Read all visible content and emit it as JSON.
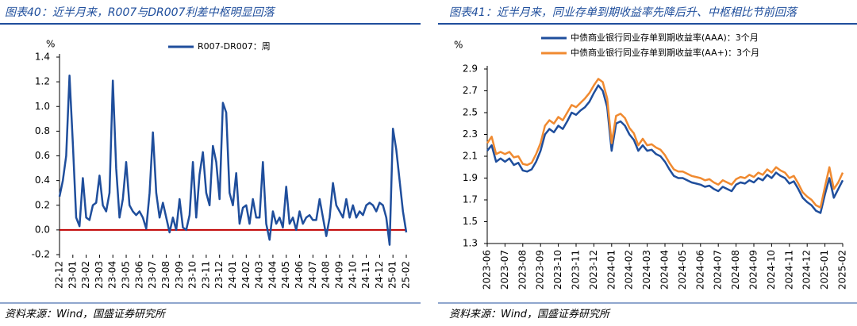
{
  "chart_data": [
    {
      "type": "line",
      "title": "图表40：近半月来，R007与DR007利差中枢明显回落",
      "y_label": "%",
      "source": "资料来源：Wind，国盛证券研究所",
      "categories": [
        "22-12",
        null,
        null,
        null,
        "23-01",
        null,
        null,
        null,
        "23-02",
        null,
        null,
        null,
        "23-03",
        null,
        null,
        null,
        "23-04",
        null,
        null,
        null,
        "23-05",
        null,
        null,
        null,
        "23-06",
        null,
        null,
        null,
        "23-07",
        null,
        null,
        null,
        "23-08",
        null,
        null,
        null,
        "23-09",
        null,
        null,
        null,
        "23-10",
        null,
        null,
        null,
        "23-11",
        null,
        null,
        null,
        "23-12",
        null,
        null,
        null,
        "24-01",
        null,
        null,
        null,
        "24-02",
        null,
        null,
        null,
        "24-03",
        null,
        null,
        null,
        "24-04",
        null,
        null,
        null,
        "24-05",
        null,
        null,
        null,
        "24-06",
        null,
        null,
        null,
        "24-07",
        null,
        null,
        null,
        "24-08",
        null,
        null,
        null,
        "24-09",
        null,
        null,
        null,
        "24-10",
        null,
        null,
        null,
        "24-11",
        null,
        null,
        null,
        "24-12",
        null,
        null,
        null,
        "25-01",
        null,
        null,
        null,
        "25-02"
      ],
      "series": [
        {
          "name": "R007-DR007：周",
          "color": "#1f4e9c",
          "values": [
            0.27,
            0.4,
            0.6,
            1.25,
            0.7,
            0.1,
            0.03,
            0.42,
            0.1,
            0.08,
            0.2,
            0.22,
            0.44,
            0.2,
            0.15,
            0.3,
            1.21,
            0.5,
            0.1,
            0.25,
            0.55,
            0.2,
            0.15,
            0.12,
            0.15,
            0.1,
            0.01,
            0.3,
            0.79,
            0.3,
            0.1,
            0.22,
            0.1,
            -0.02,
            0.1,
            0.0,
            0.25,
            0.02,
            0.0,
            0.12,
            0.55,
            0.1,
            0.45,
            0.63,
            0.3,
            0.2,
            0.68,
            0.55,
            0.25,
            1.03,
            0.95,
            0.3,
            0.2,
            0.46,
            0.05,
            0.18,
            0.2,
            0.05,
            0.25,
            0.1,
            0.1,
            0.55,
            0.05,
            -0.08,
            0.15,
            0.05,
            0.1,
            0.02,
            0.35,
            0.05,
            0.1,
            0.0,
            0.15,
            0.05,
            0.1,
            0.12,
            0.08,
            0.08,
            0.25,
            0.1,
            -0.05,
            0.1,
            0.38,
            0.2,
            0.15,
            0.1,
            0.25,
            0.1,
            0.2,
            0.1,
            0.15,
            0.12,
            0.2,
            0.22,
            0.2,
            0.15,
            0.22,
            0.2,
            0.1,
            -0.12,
            0.82,
            0.65,
            0.4,
            0.15,
            -0.02
          ]
        }
      ],
      "ylim": [
        -0.2,
        1.4
      ],
      "yticks": [
        -0.2,
        {
          "value": 0,
          "label": "0.0"
        },
        0.2,
        0.4,
        0.6,
        0.8,
        {
          "value": 1,
          "label": "1.0"
        },
        1.2,
        1.4
      ],
      "zero_line_color": "#c00000",
      "legend": "top-center",
      "x_axis_line": false
    },
    {
      "type": "line",
      "title": "图表41：近半月来，同业存单到期收益率先降后升、中枢相比节前回落",
      "y_label": "%",
      "source": "资料来源：Wind，国盛证券研究所",
      "categories": [
        "2023-06",
        null,
        null,
        null,
        "2023-07",
        null,
        null,
        null,
        "2023-08",
        null,
        null,
        null,
        "2023-09",
        null,
        null,
        null,
        "2023-10",
        null,
        null,
        null,
        "2023-11",
        null,
        null,
        null,
        "2023-12",
        null,
        null,
        null,
        "2024-01",
        null,
        null,
        null,
        "2024-02",
        null,
        null,
        null,
        "2024-03",
        null,
        null,
        null,
        "2024-04",
        null,
        null,
        null,
        "2024-05",
        null,
        null,
        null,
        "2024-06",
        null,
        null,
        null,
        "2024-07",
        null,
        null,
        null,
        "2024-08",
        null,
        null,
        null,
        "2024-09",
        null,
        null,
        null,
        "2024-10",
        null,
        null,
        null,
        "2024-11",
        null,
        null,
        null,
        "2024-12",
        null,
        null,
        null,
        "2025-01",
        null,
        null,
        null,
        "2025-02"
      ],
      "series": [
        {
          "name": "中债商业银行同业存单到期收益率(AAA)：3个月",
          "color": "#1f4e9c",
          "values": [
            2.15,
            2.2,
            2.05,
            2.08,
            2.05,
            2.08,
            2.02,
            2.04,
            1.97,
            1.96,
            1.98,
            2.05,
            2.15,
            2.3,
            2.35,
            2.32,
            2.38,
            2.35,
            2.42,
            2.5,
            2.48,
            2.52,
            2.55,
            2.6,
            2.68,
            2.75,
            2.7,
            2.55,
            2.15,
            2.4,
            2.42,
            2.38,
            2.3,
            2.25,
            2.15,
            2.2,
            2.15,
            2.16,
            2.12,
            2.1,
            2.05,
            1.98,
            1.92,
            1.9,
            1.9,
            1.88,
            1.86,
            1.85,
            1.84,
            1.82,
            1.83,
            1.8,
            1.78,
            1.82,
            1.8,
            1.78,
            1.84,
            1.86,
            1.85,
            1.88,
            1.86,
            1.9,
            1.88,
            1.93,
            1.9,
            1.95,
            1.92,
            1.9,
            1.85,
            1.87,
            1.8,
            1.72,
            1.68,
            1.65,
            1.6,
            1.58,
            1.75,
            1.9,
            1.72,
            1.8,
            1.88
          ]
        },
        {
          "name": "中债商业银行同业存单到期收益率(AA+)：3个月",
          "color": "#f08a30",
          "values": [
            2.22,
            2.28,
            2.12,
            2.14,
            2.12,
            2.14,
            2.09,
            2.1,
            2.03,
            2.02,
            2.04,
            2.12,
            2.22,
            2.38,
            2.43,
            2.4,
            2.46,
            2.43,
            2.5,
            2.57,
            2.55,
            2.59,
            2.63,
            2.68,
            2.75,
            2.81,
            2.78,
            2.63,
            2.22,
            2.47,
            2.49,
            2.45,
            2.36,
            2.31,
            2.2,
            2.26,
            2.2,
            2.21,
            2.18,
            2.16,
            2.11,
            2.04,
            1.98,
            1.96,
            1.96,
            1.94,
            1.92,
            1.91,
            1.9,
            1.88,
            1.89,
            1.86,
            1.84,
            1.88,
            1.86,
            1.84,
            1.89,
            1.91,
            1.9,
            1.93,
            1.91,
            1.95,
            1.93,
            1.98,
            1.95,
            2.0,
            1.97,
            1.95,
            1.9,
            1.92,
            1.85,
            1.77,
            1.73,
            1.7,
            1.65,
            1.63,
            1.82,
            2.0,
            1.8,
            1.86,
            1.95
          ]
        }
      ],
      "ylim": [
        1.3,
        2.9
      ],
      "yticks": [
        1.3,
        1.5,
        1.7,
        1.9,
        2.1,
        2.3,
        2.5,
        2.7,
        2.9
      ],
      "legend": "top-left",
      "x_axis_line": true
    }
  ]
}
